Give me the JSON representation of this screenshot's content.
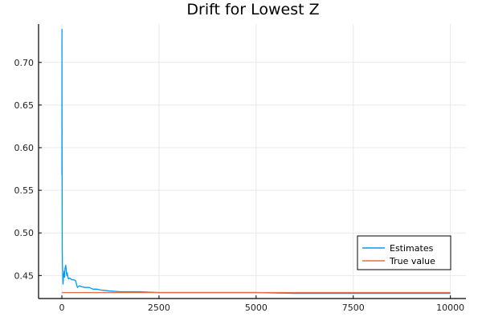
{
  "chart_data": {
    "type": "line",
    "title": "Drift for Lowest Z",
    "xlabel": "",
    "ylabel": "",
    "xlim": [
      -600,
      10400
    ],
    "ylim": [
      0.423,
      0.745
    ],
    "x_ticks": [
      0,
      2500,
      5000,
      7500,
      10000
    ],
    "x_tick_labels": [
      "0",
      "2500",
      "5000",
      "7500",
      "10000"
    ],
    "y_ticks": [
      0.45,
      0.5,
      0.55,
      0.6,
      0.65,
      0.7
    ],
    "y_tick_labels": [
      "0.45",
      "0.50",
      "0.55",
      "0.60",
      "0.65",
      "0.70"
    ],
    "grid": true,
    "legend_position": "bottom-right",
    "series": [
      {
        "name": "Estimates",
        "color": "#009af9",
        "x": [
          1,
          3,
          5,
          8,
          10,
          15,
          20,
          25,
          30,
          40,
          50,
          60,
          70,
          80,
          90,
          100,
          110,
          120,
          130,
          140,
          150,
          170,
          200,
          230,
          260,
          300,
          350,
          400,
          450,
          500,
          600,
          700,
          800,
          900,
          1000,
          1200,
          1500,
          2000,
          2500,
          3000,
          4000,
          5000,
          6000,
          7000,
          8000,
          9000,
          10000
        ],
        "y": [
          0.568,
          0.739,
          0.6,
          0.52,
          0.48,
          0.462,
          0.455,
          0.445,
          0.44,
          0.448,
          0.452,
          0.455,
          0.448,
          0.458,
          0.46,
          0.462,
          0.458,
          0.452,
          0.45,
          0.453,
          0.449,
          0.446,
          0.447,
          0.446,
          0.445,
          0.445,
          0.444,
          0.436,
          0.438,
          0.437,
          0.436,
          0.436,
          0.434,
          0.434,
          0.433,
          0.432,
          0.431,
          0.431,
          0.43,
          0.43,
          0.43,
          0.43,
          0.429,
          0.429,
          0.429,
          0.429,
          0.429
        ]
      },
      {
        "name": "True value",
        "color": "#e26f46",
        "x": [
          0,
          10000
        ],
        "y": [
          0.43,
          0.43
        ]
      }
    ]
  }
}
